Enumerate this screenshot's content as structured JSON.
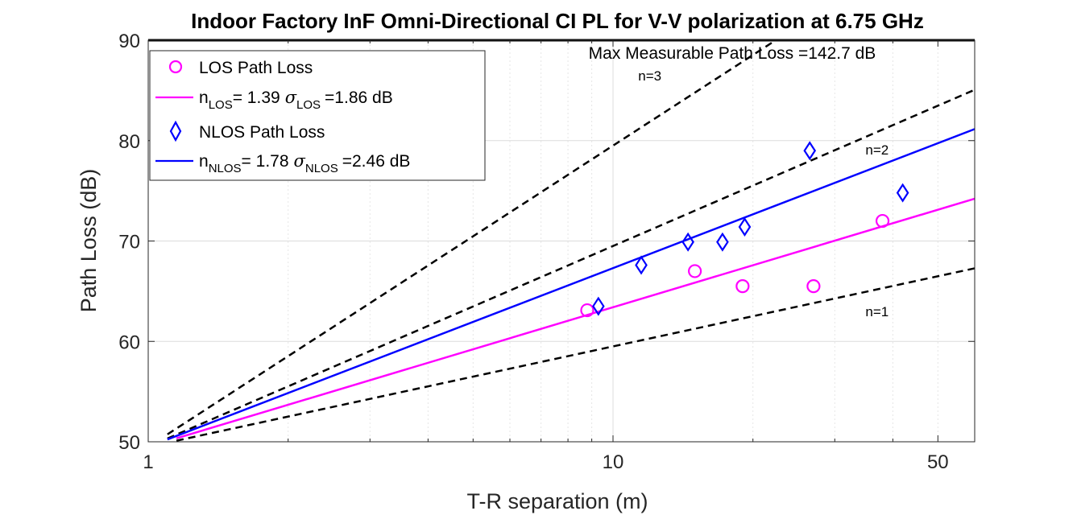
{
  "chart_data": {
    "type": "scatter",
    "title": "Indoor Factory InF Omni-Directional CI PL for V-V polarization at 6.75 GHz",
    "xlabel": "T-R separation (m)",
    "ylabel": "Path Loss (dB)",
    "xscale": "log",
    "xlim": [
      1,
      60
    ],
    "ylim": [
      50,
      90
    ],
    "xticks": [
      1,
      10,
      50
    ],
    "xtick_labels": [
      "1",
      "10",
      "50"
    ],
    "yticks": [
      50,
      60,
      70,
      80,
      90
    ],
    "ytick_labels": [
      "50",
      "60",
      "70",
      "80",
      "90"
    ],
    "grid": true,
    "max_line": {
      "value": 90,
      "label": "Max Measurable Path Loss =142.7 dB"
    },
    "fspl_ref": 49.5,
    "series": [
      {
        "name": "LOS Path Loss",
        "kind": "marker",
        "marker": "circle",
        "color": "#ff00ff",
        "x": [
          8.8,
          15.0,
          19.0,
          27.0,
          38.0
        ],
        "y": [
          63.1,
          67.0,
          65.5,
          65.5,
          72.0
        ]
      },
      {
        "name": "LOS fit",
        "kind": "line",
        "color": "#ff00ff",
        "n": 1.39,
        "x_range": [
          1.15,
          60
        ]
      },
      {
        "name": "NLOS Path Loss",
        "kind": "marker",
        "marker": "diamond",
        "color": "#0000ff",
        "x": [
          9.3,
          11.5,
          14.5,
          17.2,
          19.2,
          26.5,
          42.0
        ],
        "y": [
          63.5,
          67.6,
          69.9,
          69.9,
          71.4,
          79.0,
          74.8
        ]
      },
      {
        "name": "NLOS fit",
        "kind": "line",
        "color": "#0000ff",
        "n": 1.78,
        "x_range": [
          1.1,
          60
        ]
      },
      {
        "name": "n=1",
        "kind": "ref",
        "n": 1,
        "color": "#000000",
        "x_range": [
          1.15,
          60
        ]
      },
      {
        "name": "n=2",
        "kind": "ref",
        "n": 2,
        "color": "#000000",
        "x_range": [
          1.1,
          60
        ]
      },
      {
        "name": "n=3",
        "kind": "ref",
        "n": 3,
        "color": "#000000",
        "x_range": [
          1.1,
          60
        ]
      }
    ],
    "annotations": [
      {
        "text": "n=3",
        "x": 12.0,
        "y": 86.0
      },
      {
        "text": "n=2",
        "x": 37.0,
        "y": 78.6
      },
      {
        "text": "n=1",
        "x": 37.0,
        "y": 62.5
      }
    ],
    "legend": {
      "position": "top-left",
      "los_markers": "LOS Path Loss",
      "los_fit": {
        "n_sub": "LOS",
        "n_value": "= 1.39",
        "sigma_sub": "LOS",
        "sigma_value": "=1.86 dB"
      },
      "nlos_markers": "NLOS Path Loss",
      "nlos_fit": {
        "n_sub": "NLOS",
        "n_value": "= 1.78",
        "sigma_sub": "NLOS",
        "sigma_value": "=2.46 dB"
      },
      "n_symbol": "n",
      "sigma_symbol": "σ"
    }
  }
}
